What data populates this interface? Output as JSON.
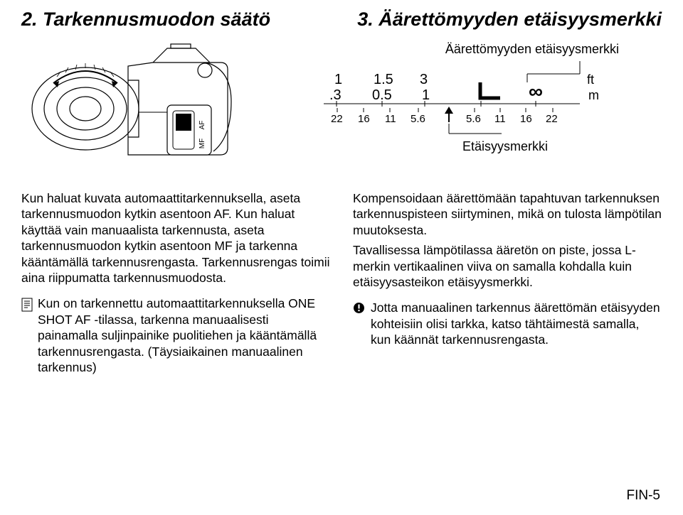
{
  "headings": {
    "left": "2. Tarkennusmuodon säätö",
    "right": "3. Äärettömyyden etäisyysmerkki"
  },
  "scale": {
    "top_label": "Äärettömyyden etäisyysmerkki",
    "bottom_label": "Etäisyysmerkki",
    "ft_row": [
      "1",
      "1.5",
      "3"
    ],
    "m_row": [
      ".3",
      "0.5",
      "1"
    ],
    "ft_unit": "ft",
    "m_unit": "m",
    "aperture_row": [
      "22",
      "16",
      "11",
      "5.6",
      "5.6",
      "11",
      "16",
      "22"
    ],
    "switch_labels": [
      "AF",
      "MF"
    ]
  },
  "left_col": {
    "p1": "Kun haluat kuvata automaattitarkennuksella, aseta tarkennusmuodon kytkin asentoon AF. Kun haluat käyttää vain manuaalista tarkennusta, aseta tarkennusmuodon kytkin asentoon MF ja tarkenna kääntämällä tarkennusrengasta. Tarkennusrengas toimii aina riippumatta tarkennusmuodosta.",
    "note": "Kun on tarkennettu automaattitarkennuksella ONE SHOT AF -tilassa, tarkenna manuaalisesti painamalla suljinpainike puolitiehen ja kääntämällä tarkennusrengasta. (Täysiaikainen manuaalinen tarkennus)"
  },
  "right_col": {
    "p1": "Kompensoidaan äärettömään tapahtuvan tarkennuksen tarkennuspisteen siirtyminen, mikä on tulosta lämpötilan muutoksesta.",
    "p2": "Tavallisessa lämpötilassa ääretön on piste, jossa L-merkin vertikaalinen viiva on samalla kohdalla kuin etäisyysasteikon etäisyysmerkki.",
    "note": "Jotta manuaalinen tarkennus äärettömän etäisyyden kohteisiin olisi tarkka, katso tähtäimestä samalla, kun käännät tarkennusrengasta."
  },
  "page": "FIN-5",
  "colors": {
    "text": "#000000",
    "bg": "#ffffff",
    "line": "#000000"
  }
}
